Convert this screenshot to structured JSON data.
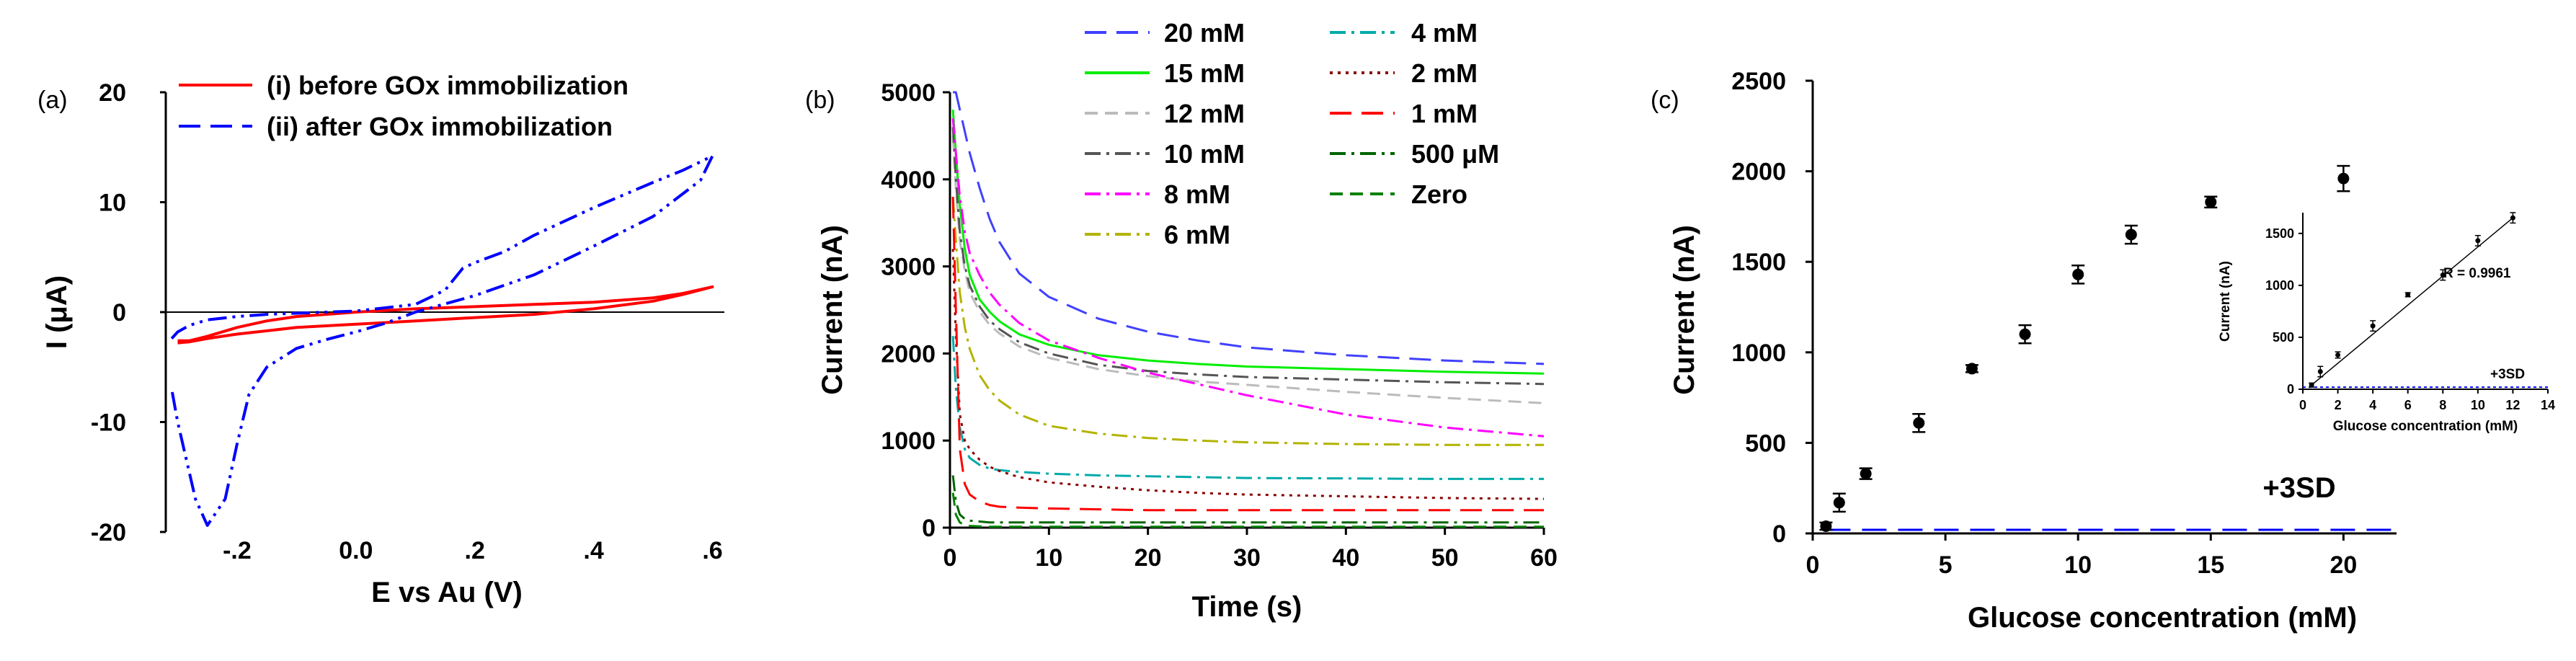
{
  "chart_data": [
    {
      "panel": "(a)",
      "type": "line",
      "title": "",
      "xlabel": "E vs Au (V)",
      "ylabel": "I (μA)",
      "xlim": [
        -0.32,
        0.62
      ],
      "ylim": [
        -20,
        20
      ],
      "xticks": [
        -0.2,
        0.0,
        0.2,
        0.4,
        0.6
      ],
      "xtick_labels": [
        "-.2",
        "0.0",
        ".2",
        ".4",
        ".6"
      ],
      "yticks": [
        -20,
        -10,
        0,
        10,
        20
      ],
      "ytick_labels": [
        "-20",
        "-10",
        "0",
        "10",
        "20"
      ],
      "legend_position": "top",
      "series": [
        {
          "name": "(i) before GOx immobilization",
          "color": "#ff0000",
          "style": "solid",
          "x": [
            -0.3,
            -0.28,
            -0.25,
            -0.2,
            -0.15,
            -0.1,
            -0.05,
            0.0,
            0.1,
            0.2,
            0.3,
            0.4,
            0.5,
            0.55,
            0.6,
            0.55,
            0.5,
            0.4,
            0.3,
            0.2,
            0.1,
            0.0,
            -0.1,
            -0.2,
            -0.25,
            -0.28,
            -0.3
          ],
          "y": [
            -2.6,
            -2.6,
            -2.2,
            -1.4,
            -0.8,
            -0.4,
            -0.2,
            0.0,
            0.3,
            0.5,
            0.7,
            0.9,
            1.3,
            1.7,
            2.3,
            1.6,
            1.0,
            0.3,
            -0.2,
            -0.5,
            -0.8,
            -1.1,
            -1.4,
            -2.0,
            -2.4,
            -2.7,
            -2.8
          ]
        },
        {
          "name": "(ii) after GOx immobilization",
          "color": "#0000ff",
          "style": "dash-dot-dot",
          "x": [
            -0.31,
            -0.3,
            -0.28,
            -0.25,
            -0.2,
            -0.15,
            -0.1,
            0.0,
            0.1,
            0.15,
            0.18,
            0.2,
            0.25,
            0.3,
            0.4,
            0.5,
            0.55,
            0.6,
            0.58,
            0.5,
            0.4,
            0.3,
            0.2,
            0.1,
            0.05,
            0.0,
            -0.05,
            -0.1,
            -0.15,
            -0.18,
            -0.2,
            -0.22,
            -0.25,
            -0.27,
            -0.3,
            -0.31
          ],
          "y": [
            -2.4,
            -1.8,
            -1.2,
            -0.7,
            -0.4,
            -0.2,
            -0.1,
            0.1,
            0.7,
            2.0,
            4.0,
            4.5,
            5.5,
            7.0,
            9.5,
            11.8,
            12.9,
            14.2,
            12.0,
            8.7,
            6.0,
            3.4,
            1.5,
            0.0,
            -1.0,
            -1.8,
            -2.5,
            -3.3,
            -5.0,
            -7.5,
            -12.0,
            -17.0,
            -19.4,
            -17.0,
            -10.0,
            -7.0
          ]
        }
      ]
    },
    {
      "panel": "(b)",
      "type": "line",
      "title": "",
      "xlabel": "Time (s)",
      "ylabel": "Current (nA)",
      "xlim": [
        0,
        60
      ],
      "ylim": [
        0,
        5000
      ],
      "xticks": [
        0,
        10,
        20,
        30,
        40,
        50,
        60
      ],
      "yticks": [
        0,
        1000,
        2000,
        3000,
        4000,
        5000
      ],
      "legend_position": "top",
      "x": [
        0.3,
        0.6,
        1,
        1.5,
        2,
        3,
        4,
        5,
        7,
        10,
        15,
        20,
        25,
        30,
        40,
        50,
        60
      ],
      "series": [
        {
          "name": "20 mM",
          "color": "#4040ff",
          "style": "long-dash",
          "values": [
            5000,
            5000,
            4800,
            4550,
            4300,
            3900,
            3550,
            3280,
            2920,
            2650,
            2400,
            2250,
            2150,
            2070,
            1980,
            1920,
            1880
          ]
        },
        {
          "name": "15 mM",
          "color": "#00ee00",
          "style": "solid",
          "values": [
            4800,
            4300,
            3700,
            3200,
            2900,
            2620,
            2480,
            2370,
            2220,
            2100,
            1980,
            1920,
            1880,
            1850,
            1820,
            1790,
            1770
          ]
        },
        {
          "name": "12 mM",
          "color": "#bbbbbb",
          "style": "dash",
          "values": [
            4500,
            3900,
            3300,
            2950,
            2700,
            2480,
            2330,
            2230,
            2080,
            1950,
            1820,
            1740,
            1680,
            1640,
            1560,
            1490,
            1430
          ]
        },
        {
          "name": "10 mM",
          "color": "#555555",
          "style": "dash-dot",
          "values": [
            4600,
            4000,
            3400,
            3000,
            2780,
            2540,
            2380,
            2280,
            2130,
            2000,
            1870,
            1800,
            1760,
            1730,
            1700,
            1670,
            1650
          ]
        },
        {
          "name": "8 mM",
          "color": "#ff00ff",
          "style": "dash-dot",
          "values": [
            4700,
            4300,
            3800,
            3400,
            3150,
            2900,
            2700,
            2560,
            2350,
            2150,
            1950,
            1780,
            1650,
            1520,
            1300,
            1150,
            1050
          ]
        },
        {
          "name": "6 mM",
          "color": "#b3b300",
          "style": "dash-dot",
          "values": [
            3800,
            3300,
            2700,
            2300,
            2050,
            1750,
            1580,
            1460,
            1300,
            1170,
            1080,
            1030,
            1000,
            980,
            960,
            950,
            950
          ]
        },
        {
          "name": "4 mM",
          "color": "#00aaaa",
          "style": "dash-dot",
          "values": [
            2200,
            1600,
            1150,
            900,
            800,
            720,
            680,
            660,
            640,
            620,
            600,
            590,
            580,
            570,
            565,
            560,
            560
          ]
        },
        {
          "name": "2 mM",
          "color": "#8b0000",
          "style": "dot",
          "values": [
            3200,
            2200,
            1300,
            1000,
            900,
            780,
            700,
            650,
            580,
            520,
            470,
            430,
            400,
            380,
            360,
            340,
            330
          ]
        },
        {
          "name": "1 mM",
          "color": "#ff0000",
          "style": "long-dash",
          "values": [
            3800,
            2500,
            900,
            500,
            380,
            300,
            260,
            240,
            230,
            220,
            210,
            200,
            200,
            200,
            200,
            200,
            200
          ]
        },
        {
          "name": "500 μM",
          "color": "#006400",
          "style": "dash-dot",
          "values": [
            600,
            300,
            150,
            100,
            80,
            70,
            60,
            60,
            60,
            60,
            60,
            60,
            60,
            60,
            60,
            60,
            60
          ]
        },
        {
          "name": "Zero",
          "color": "#008000",
          "style": "dash",
          "values": [
            400,
            150,
            60,
            30,
            20,
            15,
            10,
            10,
            10,
            10,
            10,
            10,
            10,
            10,
            10,
            10,
            10
          ]
        }
      ]
    },
    {
      "panel": "(c)",
      "type": "scatter",
      "title": "",
      "xlabel": "Glucose concentration (mM)",
      "ylabel": "Current (nA)",
      "xlim": [
        0,
        22
      ],
      "ylim": [
        0,
        2500
      ],
      "xticks": [
        0,
        5,
        10,
        15,
        20
      ],
      "yticks": [
        0,
        500,
        1000,
        1500,
        2000,
        2500
      ],
      "x": [
        0.5,
        1,
        2,
        4,
        6,
        8,
        10,
        12,
        15,
        20
      ],
      "values": [
        40,
        170,
        330,
        610,
        910,
        1100,
        1430,
        1650,
        1830,
        1960
      ],
      "errors": [
        20,
        50,
        30,
        50,
        20,
        50,
        50,
        50,
        30,
        70
      ],
      "reference_line": {
        "label": "+3SD",
        "y": 20,
        "color": "#0000ff"
      },
      "inset": {
        "xlabel": "Glucose concentration (mM)",
        "ylabel": "Current (nA)",
        "xlim": [
          0,
          14
        ],
        "ylim": [
          0,
          1700
        ],
        "xticks": [
          0,
          2,
          4,
          6,
          8,
          10,
          12,
          14
        ],
        "yticks": [
          0,
          500,
          1000,
          1500
        ],
        "x": [
          0.5,
          1,
          2,
          4,
          6,
          8,
          10,
          12
        ],
        "values": [
          40,
          170,
          330,
          610,
          910,
          1100,
          1430,
          1650
        ],
        "errors": [
          20,
          50,
          30,
          50,
          20,
          50,
          50,
          50
        ],
        "fit_line": {
          "x": [
            0.5,
            12
          ],
          "y": [
            40,
            1650
          ]
        },
        "annotation": "R = 0.9961",
        "reference_line": {
          "label": "+3SD",
          "y": 20
        }
      }
    }
  ]
}
